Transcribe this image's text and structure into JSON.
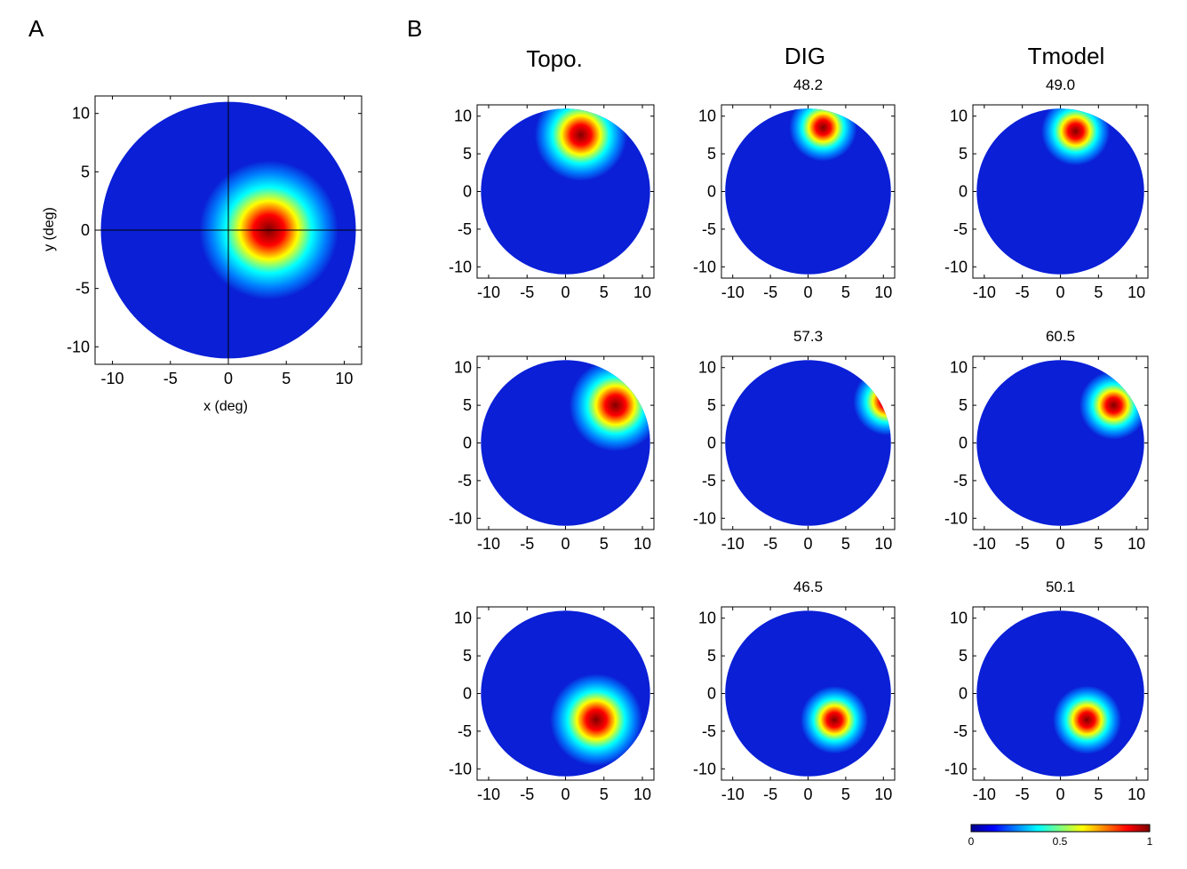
{
  "figure": {
    "panel_labels": [
      "A",
      "B"
    ],
    "column_titles": [
      "Topo.",
      "DIG",
      "Tmodel"
    ]
  },
  "chart_data": [
    {
      "id": "A",
      "type": "heatmap",
      "subtitle": "",
      "xlabel": "x (deg)",
      "ylabel": "y (deg)",
      "xlim": [
        -11.5,
        11.5
      ],
      "ylim": [
        -11.5,
        11.5
      ],
      "xticks": [
        -10,
        -5,
        0,
        5,
        10
      ],
      "yticks": [
        -10,
        -5,
        0,
        5,
        10
      ],
      "peak": [
        3.5,
        0
      ],
      "peak_value": 1.0,
      "aperture_radius": 11,
      "crosshair": [
        0,
        0
      ]
    },
    {
      "id": "B1-topo",
      "type": "heatmap",
      "subtitle": "",
      "xlim": [
        -11.5,
        11.5
      ],
      "ylim": [
        -11.5,
        11.5
      ],
      "xticks": [
        -10,
        -5,
        0,
        5,
        10
      ],
      "yticks": [
        -10,
        -5,
        0,
        5,
        10
      ],
      "peak": [
        2,
        7.5
      ],
      "aperture_radius": 11
    },
    {
      "id": "B1-DIG",
      "type": "heatmap",
      "subtitle": "48.2",
      "xlim": [
        -11.5,
        11.5
      ],
      "ylim": [
        -11.5,
        11.5
      ],
      "xticks": [
        -10,
        -5,
        0,
        5,
        10
      ],
      "yticks": [
        -10,
        -5,
        0,
        5,
        10
      ],
      "peak": [
        2,
        8.5
      ],
      "aperture_radius": 11
    },
    {
      "id": "B1-Tmodel",
      "type": "heatmap",
      "subtitle": "49.0",
      "xlim": [
        -11.5,
        11.5
      ],
      "ylim": [
        -11.5,
        11.5
      ],
      "xticks": [
        -10,
        -5,
        0,
        5,
        10
      ],
      "yticks": [
        -10,
        -5,
        0,
        5,
        10
      ],
      "peak": [
        2,
        8
      ],
      "aperture_radius": 11
    },
    {
      "id": "B2-topo",
      "type": "heatmap",
      "subtitle": "",
      "xlim": [
        -11.5,
        11.5
      ],
      "ylim": [
        -11.5,
        11.5
      ],
      "xticks": [
        -10,
        -5,
        0,
        5,
        10
      ],
      "yticks": [
        -10,
        -5,
        0,
        5,
        10
      ],
      "peak": [
        6.5,
        5
      ],
      "aperture_radius": 11
    },
    {
      "id": "B2-DIG",
      "type": "heatmap",
      "subtitle": "57.3",
      "xlim": [
        -11.5,
        11.5
      ],
      "ylim": [
        -11.5,
        11.5
      ],
      "xticks": [
        -10,
        -5,
        0,
        5,
        10
      ],
      "yticks": [
        -10,
        -5,
        0,
        5,
        10
      ],
      "peak": [
        10.5,
        5.5
      ],
      "aperture_radius": 11
    },
    {
      "id": "B2-Tmodel",
      "type": "heatmap",
      "subtitle": "60.5",
      "xlim": [
        -11.5,
        11.5
      ],
      "ylim": [
        -11.5,
        11.5
      ],
      "xticks": [
        -10,
        -5,
        0,
        5,
        10
      ],
      "yticks": [
        -10,
        -5,
        0,
        5,
        10
      ],
      "peak": [
        7,
        5
      ],
      "aperture_radius": 11
    },
    {
      "id": "B3-topo",
      "type": "heatmap",
      "subtitle": "",
      "xlim": [
        -11.5,
        11.5
      ],
      "ylim": [
        -11.5,
        11.5
      ],
      "xticks": [
        -10,
        -5,
        0,
        5,
        10
      ],
      "yticks": [
        -10,
        -5,
        0,
        5,
        10
      ],
      "peak": [
        4,
        -3.5
      ],
      "aperture_radius": 11
    },
    {
      "id": "B3-DIG",
      "type": "heatmap",
      "subtitle": "46.5",
      "xlim": [
        -11.5,
        11.5
      ],
      "ylim": [
        -11.5,
        11.5
      ],
      "xticks": [
        -10,
        -5,
        0,
        5,
        10
      ],
      "yticks": [
        -10,
        -5,
        0,
        5,
        10
      ],
      "peak": [
        3.5,
        -3.5
      ],
      "aperture_radius": 11
    },
    {
      "id": "B3-Tmodel",
      "type": "heatmap",
      "subtitle": "50.1",
      "xlim": [
        -11.5,
        11.5
      ],
      "ylim": [
        -11.5,
        11.5
      ],
      "xticks": [
        -10,
        -5,
        0,
        5,
        10
      ],
      "yticks": [
        -10,
        -5,
        0,
        5,
        10
      ],
      "peak": [
        3.5,
        -3.5
      ],
      "aperture_radius": 11
    }
  ],
  "colorbar": {
    "colormap": "jet",
    "range": [
      0,
      1
    ],
    "tick_values": [
      0,
      0.5,
      1
    ],
    "tick_labels": [
      "0",
      "0.5",
      "1"
    ]
  },
  "colors": {
    "jet_stops": [
      "#00008f",
      "#0000ff",
      "#00ffff",
      "#ffff00",
      "#ff0000",
      "#800000"
    ]
  }
}
